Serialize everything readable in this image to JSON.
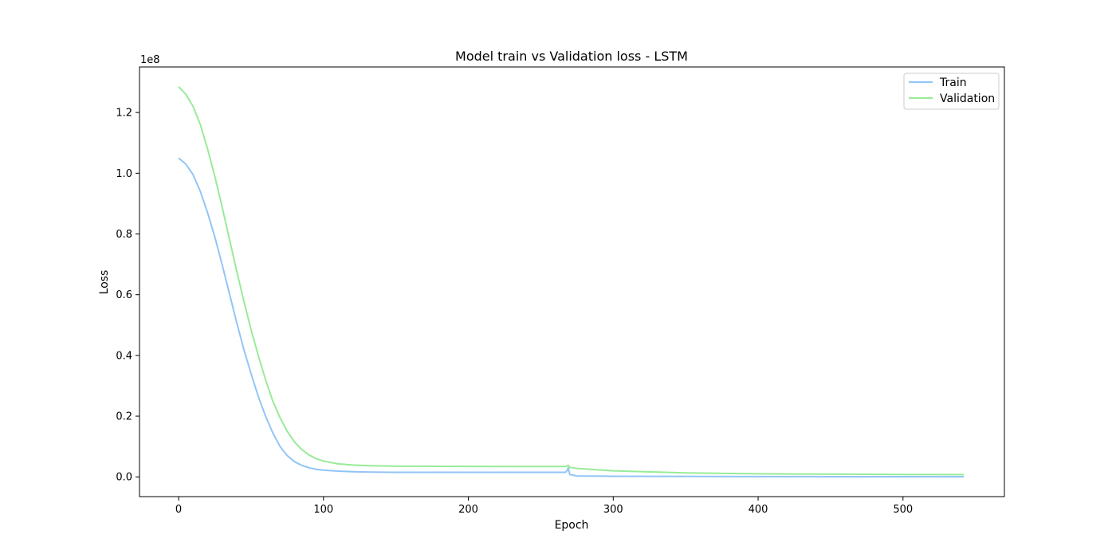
{
  "chart_data": {
    "type": "line",
    "title": "Model train vs Validation loss - LSTM",
    "xlabel": "Epoch",
    "ylabel": "Loss",
    "offset_text": "1e8",
    "xlim": [
      -27,
      570
    ],
    "ylim": [
      -6500000,
      135000000
    ],
    "x_ticks": [
      {
        "value": 0,
        "label": "0"
      },
      {
        "value": 100,
        "label": "100"
      },
      {
        "value": 200,
        "label": "200"
      },
      {
        "value": 300,
        "label": "300"
      },
      {
        "value": 400,
        "label": "400"
      },
      {
        "value": 500,
        "label": "500"
      }
    ],
    "y_ticks": [
      {
        "value": 0,
        "label": "0.0"
      },
      {
        "value": 20000000,
        "label": "0.2"
      },
      {
        "value": 40000000,
        "label": "0.4"
      },
      {
        "value": 60000000,
        "label": "0.6"
      },
      {
        "value": 80000000,
        "label": "0.8"
      },
      {
        "value": 100000000,
        "label": "1.0"
      },
      {
        "value": 120000000,
        "label": "1.2"
      }
    ],
    "grid": false,
    "legend_position": "top-right",
    "series": [
      {
        "name": "Train",
        "color": "#92c5f7",
        "x": [
          0,
          5,
          10,
          15,
          20,
          25,
          30,
          35,
          40,
          45,
          50,
          55,
          60,
          65,
          70,
          75,
          80,
          85,
          90,
          95,
          100,
          110,
          120,
          130,
          140,
          150,
          200,
          250,
          267,
          268,
          269,
          270,
          275,
          300,
          350,
          400,
          450,
          500,
          542
        ],
        "y": [
          105000000,
          103000000,
          99500000,
          94000000,
          87000000,
          79000000,
          70000000,
          60500000,
          51000000,
          42000000,
          34000000,
          26500000,
          20000000,
          14500000,
          10000000,
          7000000,
          5000000,
          3800000,
          3000000,
          2500000,
          2200000,
          1900000,
          1700000,
          1600000,
          1550000,
          1500000,
          1500000,
          1500000,
          1500000,
          2000000,
          3000000,
          800000,
          300000,
          200000,
          150000,
          100000,
          80000,
          70000,
          60000
        ]
      },
      {
        "name": "Validation",
        "color": "#98eb98",
        "x": [
          0,
          5,
          10,
          15,
          20,
          25,
          30,
          35,
          40,
          45,
          50,
          55,
          60,
          65,
          70,
          75,
          80,
          85,
          90,
          95,
          100,
          110,
          120,
          130,
          140,
          150,
          200,
          250,
          267,
          268,
          269,
          270,
          275,
          300,
          350,
          400,
          450,
          500,
          542
        ],
        "y": [
          128500000,
          126000000,
          122000000,
          116000000,
          108000000,
          99000000,
          89000000,
          78500000,
          68000000,
          58000000,
          48500000,
          40000000,
          32000000,
          25000000,
          19500000,
          15000000,
          11500000,
          9000000,
          7200000,
          6000000,
          5200000,
          4300000,
          3900000,
          3700000,
          3600000,
          3500000,
          3450000,
          3400000,
          3400000,
          3600000,
          3800000,
          3100000,
          2800000,
          2000000,
          1300000,
          1000000,
          900000,
          800000,
          750000
        ]
      }
    ]
  }
}
